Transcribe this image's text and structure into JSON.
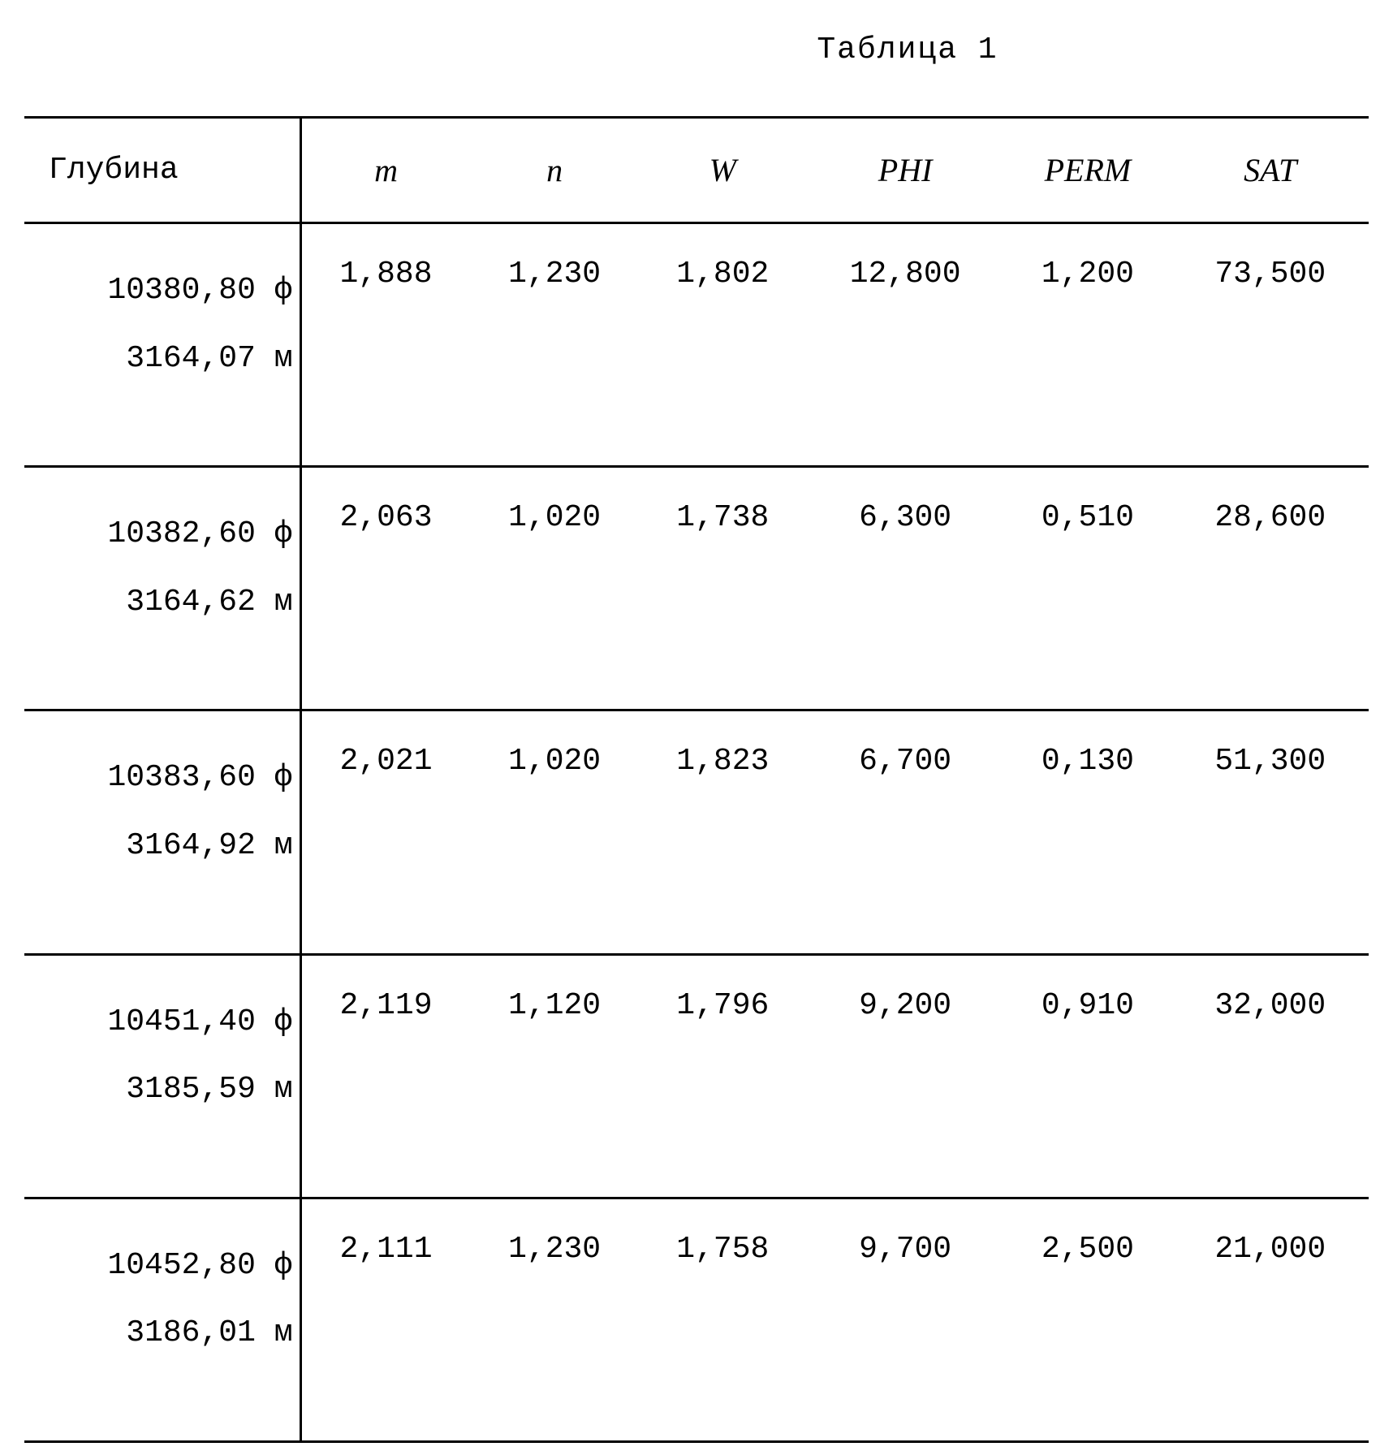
{
  "title": "Таблица 1",
  "table": {
    "type": "table",
    "background_color": "#ffffff",
    "text_color": "#000000",
    "border_color": "#000000",
    "font_family": "Courier New",
    "font_size_pt": 28,
    "columns": [
      {
        "key": "depth",
        "label": "Глубина",
        "align": "left",
        "italic": false
      },
      {
        "key": "m",
        "label": "m",
        "align": "center",
        "italic": true
      },
      {
        "key": "n",
        "label": "n",
        "align": "center",
        "italic": true
      },
      {
        "key": "w",
        "label": "W",
        "align": "center",
        "italic": true
      },
      {
        "key": "phi",
        "label": "PHI",
        "align": "center",
        "italic": true
      },
      {
        "key": "perm",
        "label": "PERM",
        "align": "center",
        "italic": true
      },
      {
        "key": "sat",
        "label": "SAT",
        "align": "center",
        "italic": true
      }
    ],
    "rows": [
      {
        "depth_ft": "10380,80 ф",
        "depth_m": "3164,07 м",
        "m": "1,888",
        "n": "1,230",
        "w": "1,802",
        "phi": "12,800",
        "perm": "1,200",
        "sat": "73,500"
      },
      {
        "depth_ft": "10382,60 ф",
        "depth_m": "3164,62 м",
        "m": "2,063",
        "n": "1,020",
        "w": "1,738",
        "phi": "6,300",
        "perm": "0,510",
        "sat": "28,600"
      },
      {
        "depth_ft": "10383,60 ф",
        "depth_m": "3164,92 м",
        "m": "2,021",
        "n": "1,020",
        "w": "1,823",
        "phi": "6,700",
        "perm": "0,130",
        "sat": "51,300"
      },
      {
        "depth_ft": "10451,40 ф",
        "depth_m": "3185,59 м",
        "m": "2,119",
        "n": "1,120",
        "w": "1,796",
        "phi": "9,200",
        "perm": "0,910",
        "sat": "32,000"
      },
      {
        "depth_ft": "10452,80 ф",
        "depth_m": "3186,01 м",
        "m": "2,111",
        "n": "1,230",
        "w": "1,758",
        "phi": "9,700",
        "perm": "2,500",
        "sat": "21,000"
      }
    ]
  }
}
